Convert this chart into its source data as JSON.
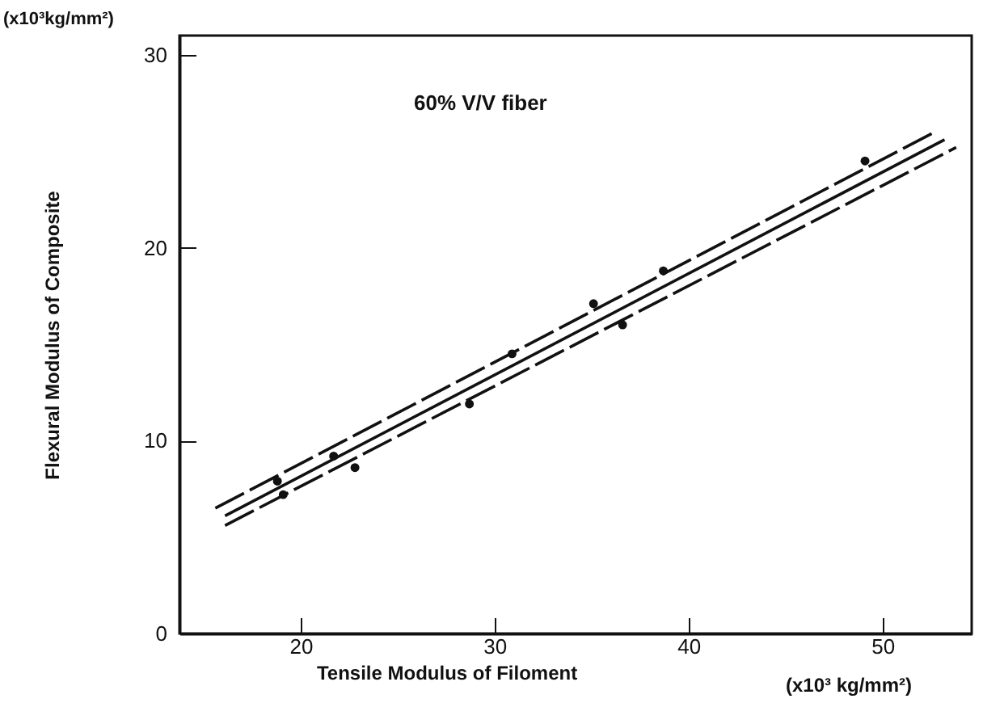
{
  "chart_data": {
    "type": "scatter",
    "xlabel": "Tensile Modulus of Filoment",
    "ylabel": "Flexural Modulus of Composite",
    "annotations": [
      "60% V/V fiber",
      "(x10³kg/mm²)",
      "(x10³ kg/mm²)"
    ],
    "xlim": [
      13.75,
      54.6
    ],
    "ylim": [
      0,
      31
    ],
    "xticks": [
      20,
      30,
      40,
      50
    ],
    "yticks": [
      0,
      10,
      20,
      30
    ],
    "grid": false,
    "series": [
      {
        "marker": "circle",
        "color": "#111111",
        "x": [
          18.8,
          19.1,
          21.7,
          22.8,
          28.7,
          30.9,
          35.1,
          36.6,
          38.7,
          49.1
        ],
        "values": [
          7.9,
          7.2,
          9.2,
          8.6,
          11.9,
          14.5,
          17.1,
          16.0,
          18.8,
          24.5
        ]
      },
      {
        "type": "line",
        "color": "#111111",
        "line_style": "dashed",
        "x": [
          15.6,
          52.7
        ],
        "values": [
          6.5,
          26.0
        ]
      },
      {
        "type": "line",
        "color": "#111111",
        "line_style": "solid",
        "x": [
          16.1,
          53.2
        ],
        "values": [
          6.1,
          25.6
        ]
      },
      {
        "type": "line",
        "color": "#111111",
        "line_style": "dashed",
        "x": [
          16.1,
          53.8
        ],
        "values": [
          5.6,
          25.2
        ]
      }
    ]
  }
}
